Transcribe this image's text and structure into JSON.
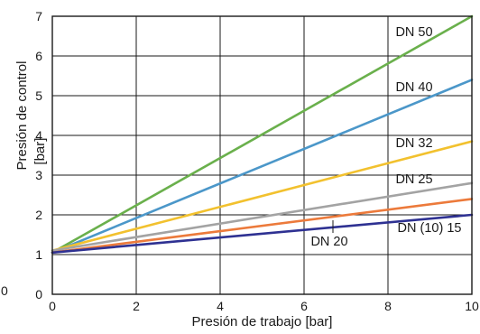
{
  "chart_data": {
    "type": "line",
    "title": "",
    "xlabel": "Presión de trabajo [bar]",
    "ylabel": "Presión de control",
    "ylabel_unit": "[bar]",
    "xlim": [
      0,
      10
    ],
    "ylim": [
      0,
      7
    ],
    "x_ticks": [
      "0",
      "2",
      "4",
      "6",
      "8",
      "10"
    ],
    "y_ticks": [
      "0",
      "1",
      "2",
      "3",
      "4",
      "5",
      "6",
      "7"
    ],
    "grid": true,
    "stray_label": "0",
    "series": [
      {
        "name": "DN 50",
        "color": "#6ab04c",
        "points": [
          [
            0,
            1.05
          ],
          [
            10,
            7.0
          ]
        ]
      },
      {
        "name": "DN 40",
        "color": "#4b97c9",
        "points": [
          [
            0,
            1.05
          ],
          [
            10,
            5.4
          ]
        ]
      },
      {
        "name": "DN 32",
        "color": "#f2c12e",
        "points": [
          [
            0,
            1.1
          ],
          [
            10,
            3.85
          ]
        ]
      },
      {
        "name": "DN 25",
        "color": "#a3a3a3",
        "points": [
          [
            0,
            1.1
          ],
          [
            10,
            2.8
          ]
        ]
      },
      {
        "name": "DN 20",
        "color": "#ec7a3b",
        "points": [
          [
            0,
            1.05
          ],
          [
            10,
            2.4
          ]
        ]
      },
      {
        "name": "DN (10) 15",
        "color": "#2e3192",
        "points": [
          [
            0,
            1.05
          ],
          [
            10,
            2.0
          ]
        ]
      }
    ]
  }
}
